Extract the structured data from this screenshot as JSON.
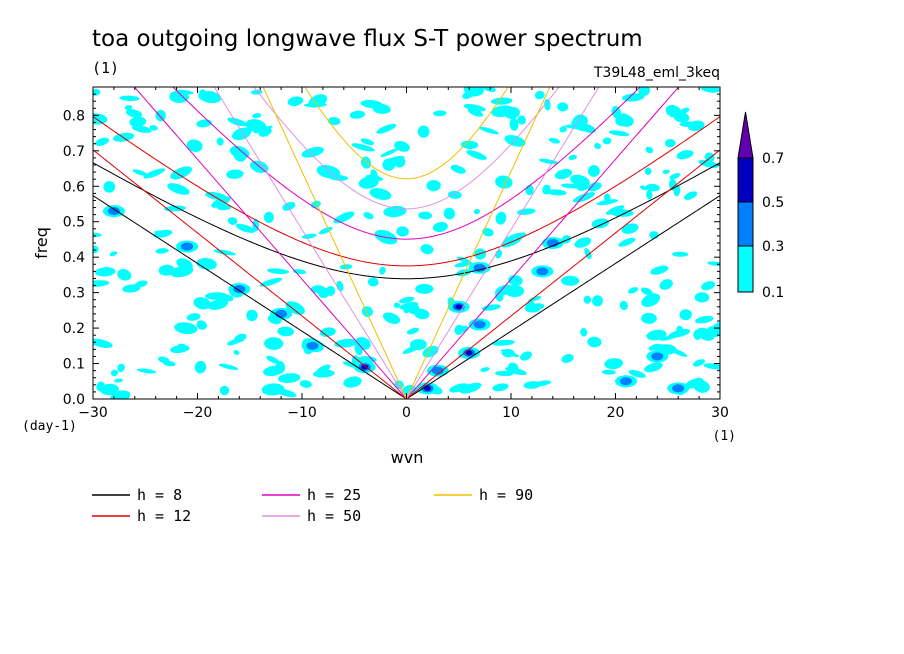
{
  "chart_data": {
    "type": "contour",
    "title": "toa outgoing longwave flux S-T power spectrum",
    "units_label": "(1)",
    "subtitle_right": "T39L48_eml_3keq",
    "xlabel": "wvn",
    "xunits": "(1)",
    "ylabel": "freq",
    "yunits": "(day-1)",
    "xlim": [
      -30,
      30
    ],
    "ylim": [
      0,
      0.88
    ],
    "xticks": [
      -30,
      -20,
      -10,
      0,
      10,
      20,
      30
    ],
    "xtick_labels": [
      "−30",
      "−20",
      "−10",
      "0",
      "10",
      "20",
      "30"
    ],
    "yticks": [
      0.0,
      0.1,
      0.2,
      0.3,
      0.4,
      0.5,
      0.6,
      0.7,
      0.8
    ],
    "ytick_labels": [
      "0.0",
      "0.1",
      "0.2",
      "0.3",
      "0.4",
      "0.5",
      "0.6",
      "0.7",
      "0.8"
    ],
    "colorbar": {
      "levels": [
        "0.1",
        "0.3",
        "0.5",
        "0.7"
      ],
      "colors": [
        "#00ffff",
        "#0080ff",
        "#0000c0",
        "#6000b0"
      ]
    },
    "dispersion_curves": [
      {
        "label": "h =  8",
        "h": 8,
        "color": "#000000"
      },
      {
        "label": "h = 12",
        "h": 12,
        "color": "#e00000"
      },
      {
        "label": "h = 25",
        "h": 25,
        "color": "#e000c0"
      },
      {
        "label": "h = 50",
        "h": 50,
        "color": "#e090e0"
      },
      {
        "label": "h = 90",
        "h": 90,
        "color": "#f0c000"
      }
    ],
    "peak_features": [
      {
        "x": -16,
        "y": 0.31,
        "level": 0.3
      },
      {
        "x": -12,
        "y": 0.24,
        "level": 0.3
      },
      {
        "x": -9,
        "y": 0.15,
        "level": 0.3
      },
      {
        "x": -4,
        "y": 0.09,
        "level": 0.5
      },
      {
        "x": 2,
        "y": 0.03,
        "level": 0.5
      },
      {
        "x": 3,
        "y": 0.08,
        "level": 0.3
      },
      {
        "x": 5,
        "y": 0.26,
        "level": 0.5
      },
      {
        "x": 6,
        "y": 0.13,
        "level": 0.5
      },
      {
        "x": 7,
        "y": 0.21,
        "level": 0.3
      },
      {
        "x": 7,
        "y": 0.37,
        "level": 0.3
      },
      {
        "x": 13,
        "y": 0.36,
        "level": 0.3
      },
      {
        "x": 14,
        "y": 0.44,
        "level": 0.3
      },
      {
        "x": 21,
        "y": 0.05,
        "level": 0.3
      },
      {
        "x": 24,
        "y": 0.12,
        "level": 0.3
      },
      {
        "x": 26,
        "y": 0.03,
        "level": 0.3
      },
      {
        "x": -21,
        "y": 0.43,
        "level": 0.3
      },
      {
        "x": -28,
        "y": 0.53,
        "level": 0.3
      }
    ]
  }
}
